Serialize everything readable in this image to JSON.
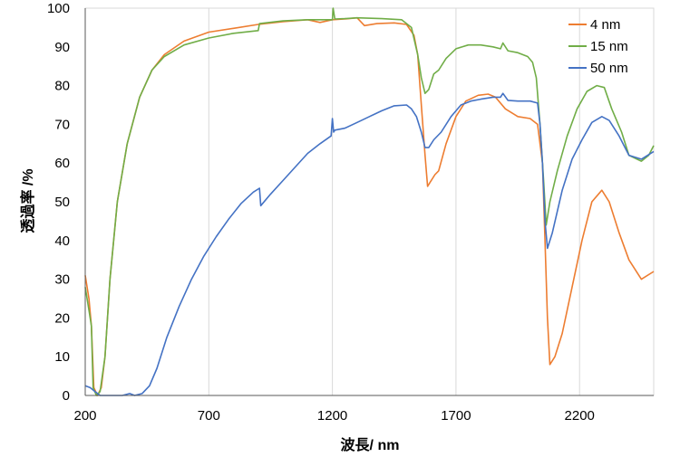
{
  "chart_data": {
    "type": "line",
    "xlabel": "波長/ nm",
    "ylabel": "透過率 /%",
    "xlim": [
      200,
      2500
    ],
    "ylim": [
      0,
      100
    ],
    "x_ticks": [
      200,
      700,
      1200,
      1700,
      2200
    ],
    "y_ticks": [
      0,
      10,
      20,
      30,
      40,
      50,
      60,
      70,
      80,
      90,
      100
    ],
    "x_grid": true,
    "y_grid": false,
    "legend_position": "top-right",
    "series": [
      {
        "name": "4 nm",
        "color": "#ed7d31",
        "points": [
          [
            200,
            31
          ],
          [
            215,
            25
          ],
          [
            225,
            18
          ],
          [
            235,
            2
          ],
          [
            250,
            0
          ],
          [
            265,
            2
          ],
          [
            280,
            10
          ],
          [
            300,
            30
          ],
          [
            330,
            50
          ],
          [
            370,
            65
          ],
          [
            420,
            77
          ],
          [
            470,
            84
          ],
          [
            520,
            88
          ],
          [
            600,
            91.5
          ],
          [
            700,
            93.8
          ],
          [
            800,
            94.8
          ],
          [
            900,
            95.8
          ],
          [
            1000,
            96.5
          ],
          [
            1100,
            97
          ],
          [
            1150,
            96.3
          ],
          [
            1200,
            97
          ],
          [
            1250,
            97.2
          ],
          [
            1300,
            97.5
          ],
          [
            1330,
            95.5
          ],
          [
            1380,
            96
          ],
          [
            1450,
            96.2
          ],
          [
            1500,
            95.8
          ],
          [
            1530,
            93
          ],
          [
            1545,
            88
          ],
          [
            1560,
            75
          ],
          [
            1575,
            62
          ],
          [
            1585,
            54
          ],
          [
            1595,
            55
          ],
          [
            1615,
            57
          ],
          [
            1630,
            58
          ],
          [
            1660,
            65
          ],
          [
            1700,
            72
          ],
          [
            1740,
            76
          ],
          [
            1790,
            77.5
          ],
          [
            1830,
            77.8
          ],
          [
            1860,
            77
          ],
          [
            1900,
            74
          ],
          [
            1950,
            72
          ],
          [
            2000,
            71.5
          ],
          [
            2030,
            70
          ],
          [
            2050,
            60
          ],
          [
            2060,
            40
          ],
          [
            2070,
            20
          ],
          [
            2080,
            8
          ],
          [
            2100,
            10
          ],
          [
            2130,
            16
          ],
          [
            2170,
            28
          ],
          [
            2210,
            40
          ],
          [
            2250,
            50
          ],
          [
            2290,
            53
          ],
          [
            2320,
            50
          ],
          [
            2360,
            42
          ],
          [
            2400,
            35
          ],
          [
            2450,
            30
          ],
          [
            2500,
            32
          ]
        ]
      },
      {
        "name": "15 nm",
        "color": "#70ad47",
        "points": [
          [
            200,
            28
          ],
          [
            215,
            22
          ],
          [
            225,
            18
          ],
          [
            232,
            2
          ],
          [
            245,
            0
          ],
          [
            260,
            1
          ],
          [
            280,
            10
          ],
          [
            300,
            30
          ],
          [
            330,
            50
          ],
          [
            370,
            65
          ],
          [
            420,
            77
          ],
          [
            470,
            84
          ],
          [
            520,
            87.5
          ],
          [
            600,
            90.5
          ],
          [
            700,
            92.3
          ],
          [
            800,
            93.5
          ],
          [
            900,
            94.2
          ],
          [
            905,
            96
          ],
          [
            1000,
            96.7
          ],
          [
            1100,
            97
          ],
          [
            1150,
            97
          ],
          [
            1200,
            97
          ],
          [
            1203,
            100
          ],
          [
            1210,
            97.2
          ],
          [
            1250,
            97.3
          ],
          [
            1300,
            97.5
          ],
          [
            1400,
            97.3
          ],
          [
            1480,
            97
          ],
          [
            1520,
            95
          ],
          [
            1545,
            88
          ],
          [
            1560,
            82
          ],
          [
            1575,
            78
          ],
          [
            1590,
            79
          ],
          [
            1610,
            83
          ],
          [
            1630,
            84
          ],
          [
            1660,
            87
          ],
          [
            1700,
            89.5
          ],
          [
            1750,
            90.5
          ],
          [
            1800,
            90.5
          ],
          [
            1850,
            90
          ],
          [
            1880,
            89.5
          ],
          [
            1890,
            91
          ],
          [
            1910,
            89
          ],
          [
            1950,
            88.5
          ],
          [
            1990,
            87.5
          ],
          [
            2010,
            86
          ],
          [
            2025,
            82
          ],
          [
            2040,
            70
          ],
          [
            2055,
            55
          ],
          [
            2065,
            44
          ],
          [
            2080,
            50
          ],
          [
            2110,
            58
          ],
          [
            2150,
            67
          ],
          [
            2190,
            74
          ],
          [
            2230,
            78.5
          ],
          [
            2270,
            80
          ],
          [
            2300,
            79.5
          ],
          [
            2330,
            74
          ],
          [
            2370,
            68
          ],
          [
            2400,
            62
          ],
          [
            2450,
            60.5
          ],
          [
            2480,
            62
          ],
          [
            2500,
            64.5
          ]
        ]
      },
      {
        "name": "50 nm",
        "color": "#4472c4",
        "points": [
          [
            200,
            2.5
          ],
          [
            220,
            2
          ],
          [
            240,
            1
          ],
          [
            260,
            0
          ],
          [
            300,
            0
          ],
          [
            350,
            0
          ],
          [
            380,
            0.5
          ],
          [
            400,
            0
          ],
          [
            430,
            0.5
          ],
          [
            460,
            2.5
          ],
          [
            490,
            7
          ],
          [
            530,
            15
          ],
          [
            580,
            23
          ],
          [
            630,
            30
          ],
          [
            680,
            36
          ],
          [
            730,
            41
          ],
          [
            780,
            45.5
          ],
          [
            830,
            49.5
          ],
          [
            880,
            52.5
          ],
          [
            905,
            53.5
          ],
          [
            910,
            49
          ],
          [
            950,
            52
          ],
          [
            1000,
            55.5
          ],
          [
            1050,
            59
          ],
          [
            1100,
            62.5
          ],
          [
            1150,
            65
          ],
          [
            1195,
            67
          ],
          [
            1200,
            71.5
          ],
          [
            1205,
            68
          ],
          [
            1210,
            68.5
          ],
          [
            1250,
            69
          ],
          [
            1300,
            70.5
          ],
          [
            1350,
            72
          ],
          [
            1400,
            73.5
          ],
          [
            1450,
            74.8
          ],
          [
            1500,
            75
          ],
          [
            1520,
            74
          ],
          [
            1540,
            72
          ],
          [
            1560,
            68
          ],
          [
            1575,
            64
          ],
          [
            1590,
            64
          ],
          [
            1610,
            66
          ],
          [
            1640,
            68
          ],
          [
            1680,
            72
          ],
          [
            1720,
            75
          ],
          [
            1760,
            76
          ],
          [
            1800,
            76.5
          ],
          [
            1850,
            77
          ],
          [
            1880,
            77
          ],
          [
            1890,
            78
          ],
          [
            1910,
            76.2
          ],
          [
            1950,
            76
          ],
          [
            2000,
            76
          ],
          [
            2030,
            75.5
          ],
          [
            2040,
            70
          ],
          [
            2050,
            60
          ],
          [
            2060,
            45
          ],
          [
            2070,
            38
          ],
          [
            2090,
            42
          ],
          [
            2130,
            53
          ],
          [
            2170,
            61
          ],
          [
            2210,
            66
          ],
          [
            2250,
            70.5
          ],
          [
            2290,
            72
          ],
          [
            2320,
            71
          ],
          [
            2360,
            67
          ],
          [
            2400,
            62
          ],
          [
            2450,
            61
          ],
          [
            2500,
            63
          ]
        ]
      }
    ]
  }
}
